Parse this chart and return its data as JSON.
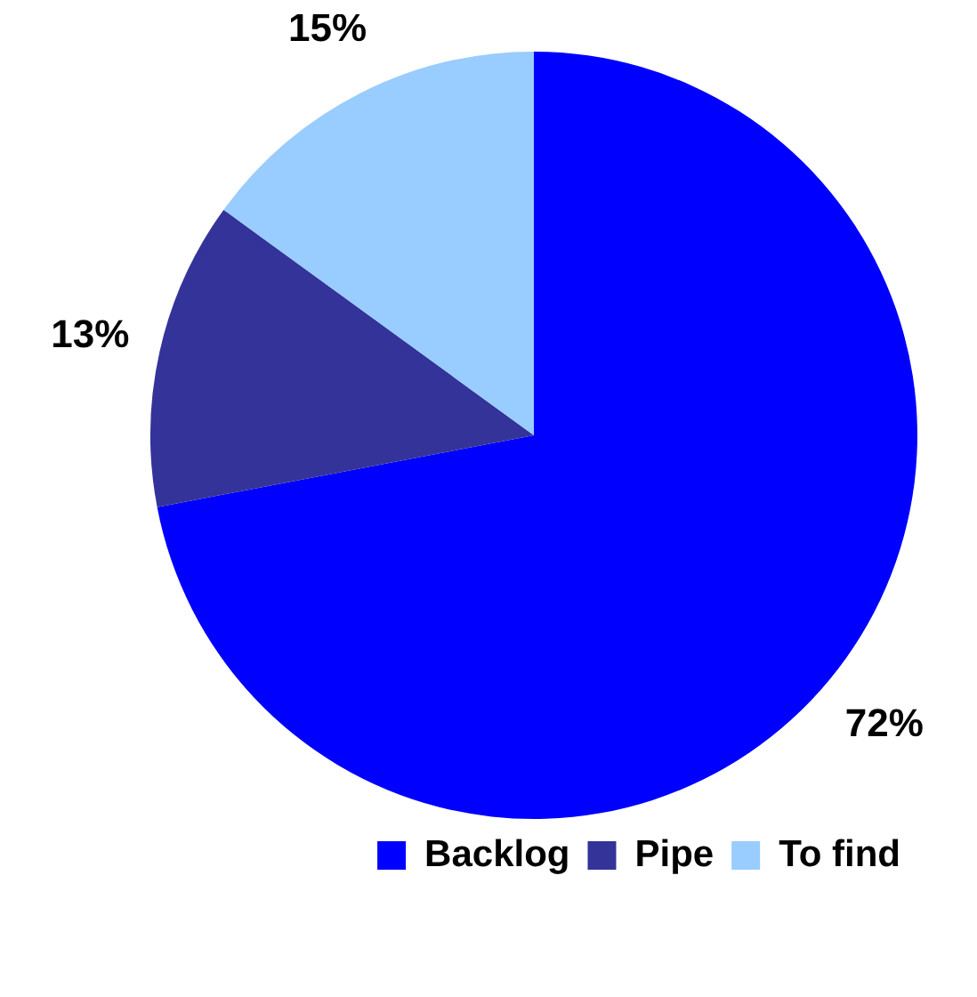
{
  "chart_data": {
    "type": "pie",
    "categories": [
      "Backlog",
      "Pipe",
      "To find"
    ],
    "values": [
      72,
      13,
      15
    ],
    "colors": [
      "#0000ff",
      "#333399",
      "#99ccff"
    ],
    "value_labels": [
      "72%",
      "13%",
      "15%"
    ],
    "legend": "bottom right"
  }
}
